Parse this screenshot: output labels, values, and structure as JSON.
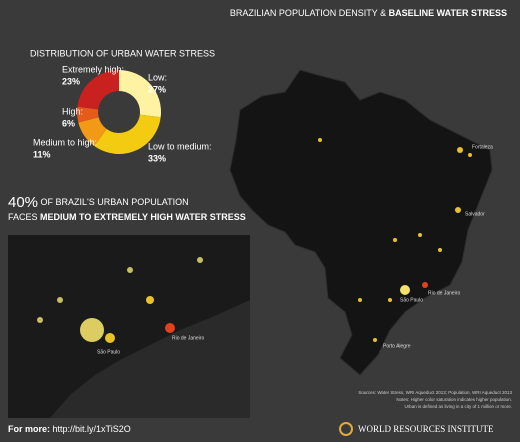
{
  "header": {
    "title_plain": "BRAZILIAN POPULATION DENSITY & ",
    "title_bold": "BASELINE WATER STRESS"
  },
  "chart_data": {
    "type": "pie",
    "title": "DISTRIBUTION OF URBAN WATER STRESS",
    "categories": [
      "Low:",
      "Low to medium:",
      "Medium to high:",
      "High:",
      "Extremely high:"
    ],
    "values": [
      27,
      33,
      11,
      6,
      23
    ],
    "value_labels": [
      "27%",
      "33%",
      "11%",
      "6%",
      "23%"
    ],
    "colors": [
      "#fff3a3",
      "#f3cc12",
      "#f29a16",
      "#e65a1c",
      "#c8211f"
    ],
    "donut": true
  },
  "callout": {
    "big": "40%",
    "line1": " OF BRAZIL'S URBAN POPULATION",
    "line2_plain": "FACES ",
    "line2_bold": "MEDIUM TO EXTREMELY HIGH WATER STRESS"
  },
  "map_labels": {
    "fortaleza": "Fortaleza",
    "salvador": "Salvador",
    "rio": "Rio de Janeiro",
    "sao_paulo": "São Paulo",
    "porto_alegre": "Porto Alegre",
    "inset_rio": "Rio de Janeiro",
    "inset_sao_paulo": "São Paulo"
  },
  "sources": [
    "Sources: Water Stress, WRI Aqueduct 2013; Population, WRI Aqueduct 2013",
    "Notes: Higher color saturation indicates higher population.",
    "Urban is defined as living in a city of 1 million or more."
  ],
  "footer": {
    "lead": "For more:",
    "link": "http://bit.ly/1xTiS2O",
    "org": "WORLD RESOURCES INSTITUTE"
  }
}
